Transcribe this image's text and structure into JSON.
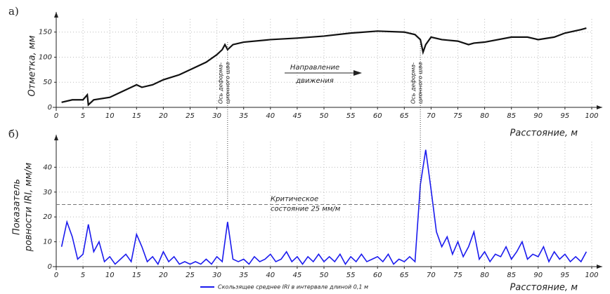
{
  "chart_data": [
    {
      "type": "line",
      "panel_label": "а)",
      "y_label": "Отметка, мм",
      "x_label": "Расстояние, м",
      "x": [
        1,
        3,
        5,
        5.8,
        6,
        7,
        10,
        13,
        15,
        16,
        18,
        20,
        23,
        25,
        28,
        30,
        31,
        31.5,
        32,
        33,
        35,
        40,
        45,
        50,
        55,
        60,
        65,
        67,
        68,
        68.5,
        69,
        70,
        72,
        75,
        77,
        78,
        80,
        85,
        88,
        90,
        93,
        95,
        98,
        99
      ],
      "series": [
        {
          "color": "#111111",
          "values": [
            10,
            15,
            15,
            25,
            5,
            15,
            20,
            35,
            45,
            40,
            45,
            55,
            65,
            75,
            90,
            105,
            115,
            125,
            115,
            125,
            130,
            135,
            138,
            142,
            148,
            152,
            150,
            145,
            135,
            110,
            125,
            140,
            135,
            132,
            125,
            128,
            130,
            140,
            140,
            135,
            140,
            148,
            155,
            158
          ]
        }
      ],
      "xlim": [
        0,
        100
      ],
      "xticks": [
        0,
        5,
        10,
        15,
        20,
        25,
        30,
        35,
        40,
        45,
        50,
        55,
        60,
        65,
        70,
        75,
        80,
        85,
        90,
        95,
        100
      ],
      "ylim": [
        0,
        165
      ],
      "yticks": [
        0,
        50,
        100,
        150
      ],
      "grid": true,
      "joints": [
        {
          "x": 32,
          "label": [
            "Ось деформа-",
            "ционного шва"
          ]
        },
        {
          "x": 68,
          "label": [
            "Ось деформа-",
            "ционного шва"
          ]
        }
      ],
      "direction_label": [
        "Направление",
        "движения"
      ]
    },
    {
      "type": "line",
      "panel_label": "б)",
      "y_label": [
        "Показатель",
        "ровности IRI, мм/м"
      ],
      "x_label": "Расстояние, м",
      "x": [
        1,
        2,
        3,
        4,
        5,
        6,
        7,
        8,
        9,
        10,
        11,
        12,
        13,
        14,
        15,
        16,
        17,
        18,
        19,
        20,
        21,
        22,
        23,
        24,
        25,
        26,
        27,
        28,
        29,
        30,
        31,
        32,
        33,
        34,
        35,
        36,
        37,
        38,
        39,
        40,
        41,
        42,
        43,
        44,
        45,
        46,
        47,
        48,
        49,
        50,
        51,
        52,
        53,
        54,
        55,
        56,
        57,
        58,
        59,
        60,
        61,
        62,
        63,
        64,
        65,
        66,
        67,
        68,
        69,
        70,
        71,
        72,
        73,
        74,
        75,
        76,
        77,
        78,
        79,
        80,
        81,
        82,
        83,
        84,
        85,
        86,
        87,
        88,
        89,
        90,
        91,
        92,
        93,
        94,
        95,
        96,
        97,
        98,
        99
      ],
      "series": [
        {
          "name": "Скользящее среднее IRI в интервале длиной 0,1 м",
          "color": "#1a1aee",
          "values": [
            8,
            18,
            12,
            3,
            5,
            17,
            6,
            10,
            2,
            4,
            1,
            3,
            5,
            2,
            13,
            8,
            2,
            4,
            1,
            6,
            2,
            4,
            1,
            2,
            1,
            2,
            1,
            3,
            1,
            4,
            2,
            18,
            3,
            2,
            3,
            1,
            4,
            2,
            3,
            5,
            2,
            3,
            6,
            2,
            4,
            1,
            4,
            2,
            5,
            2,
            4,
            2,
            5,
            1,
            4,
            2,
            5,
            2,
            3,
            4,
            2,
            5,
            1,
            3,
            2,
            4,
            2,
            33,
            47,
            31,
            14,
            8,
            12,
            5,
            10,
            4,
            8,
            14,
            3,
            6,
            2,
            5,
            4,
            8,
            3,
            6,
            10,
            3,
            5,
            4,
            8,
            2,
            6,
            3,
            5,
            2,
            4,
            2,
            6
          ]
        }
      ],
      "xlim": [
        0,
        100
      ],
      "xticks": [
        0,
        5,
        10,
        15,
        20,
        25,
        30,
        35,
        40,
        45,
        50,
        55,
        60,
        65,
        70,
        75,
        80,
        85,
        90,
        95,
        100
      ],
      "ylim": [
        0,
        48
      ],
      "yticks": [
        0,
        10,
        20,
        30,
        40
      ],
      "grid": true,
      "threshold": 25,
      "threshold_label": [
        "Критическое",
        "состояние 25 мм/м"
      ]
    }
  ]
}
